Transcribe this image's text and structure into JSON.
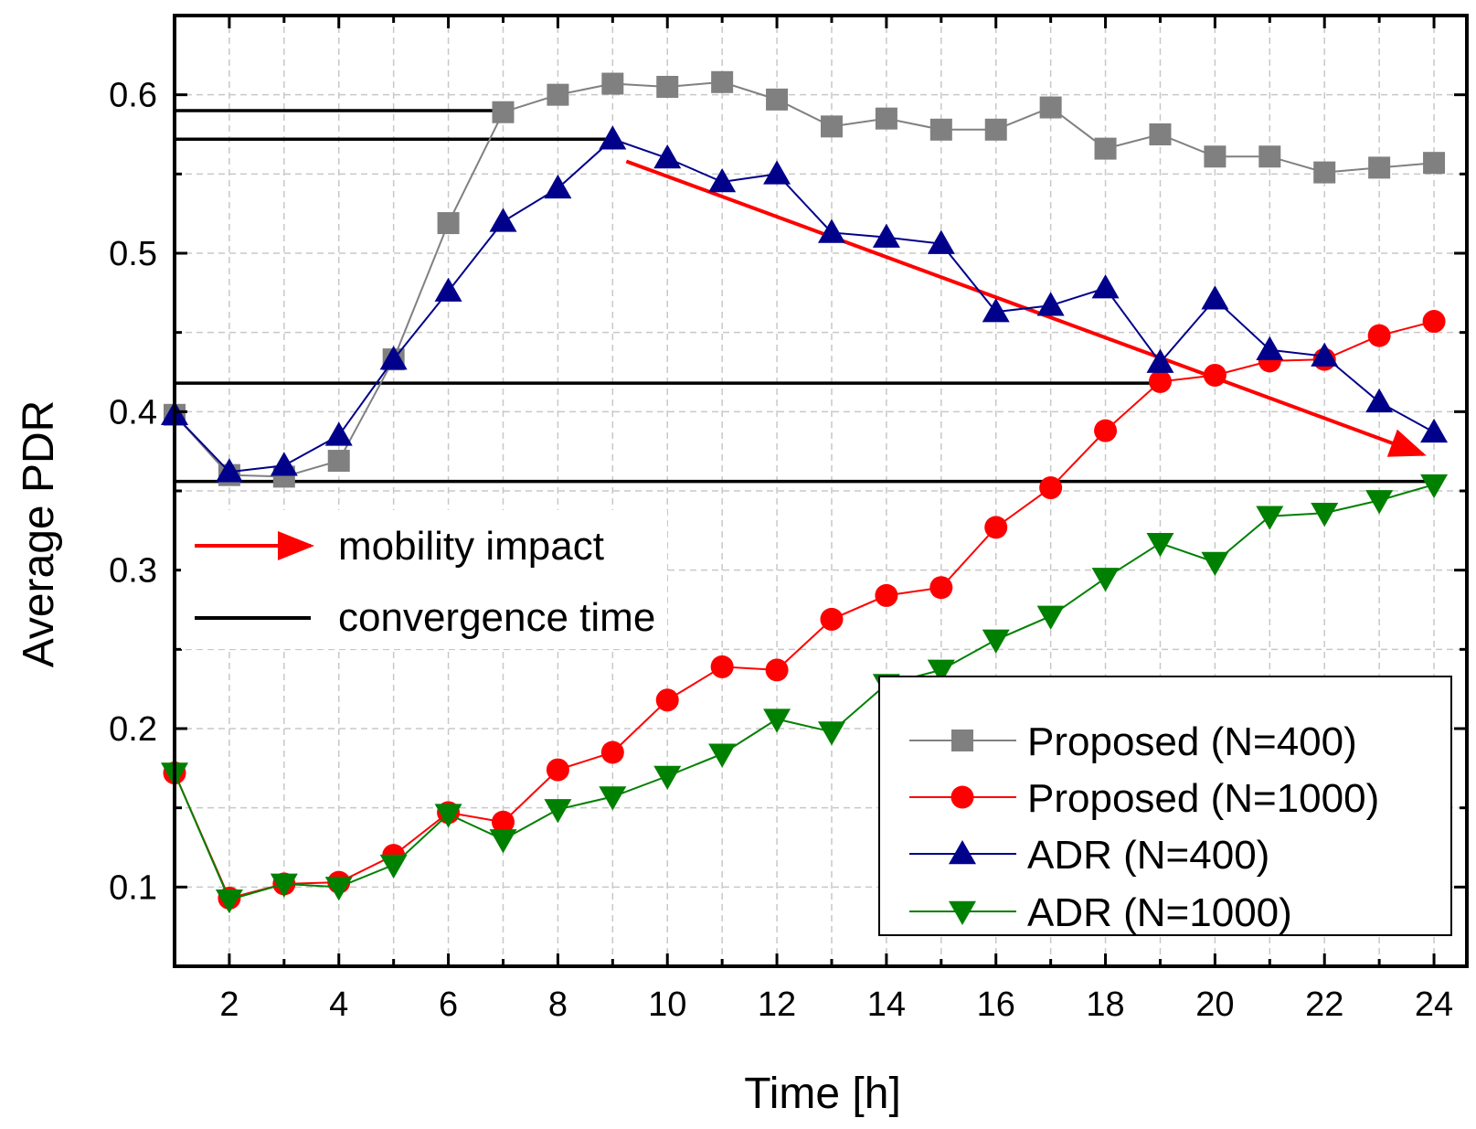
{
  "chart_data": {
    "type": "line",
    "title": "",
    "xlabel": "Time [h]",
    "ylabel": "Average PDR",
    "xlim": [
      1,
      24.6
    ],
    "ylim": [
      0.05,
      0.65
    ],
    "xticks": [
      2,
      4,
      6,
      8,
      10,
      12,
      14,
      16,
      18,
      20,
      22,
      24
    ],
    "yticks": [
      0.1,
      0.2,
      0.3,
      0.4,
      0.5,
      0.6
    ],
    "grid": true,
    "x": [
      1,
      2,
      3,
      4,
      5,
      6,
      7,
      8,
      9,
      10,
      11,
      12,
      13,
      14,
      15,
      16,
      17,
      18,
      19,
      20,
      21,
      22,
      23,
      24
    ],
    "series": [
      {
        "name": "Proposed (N=400)",
        "color": "#808080",
        "marker": "square",
        "values": [
          0.398,
          0.36,
          0.359,
          0.369,
          0.433,
          0.519,
          0.589,
          0.6,
          0.607,
          0.605,
          0.608,
          0.597,
          0.58,
          0.585,
          0.578,
          0.578,
          0.592,
          0.566,
          0.575,
          0.561,
          0.561,
          0.551,
          0.554,
          0.557
        ]
      },
      {
        "name": "Proposed (N=1000)",
        "color": "#ff0000",
        "marker": "circle",
        "values": [
          0.172,
          0.093,
          0.102,
          0.103,
          0.12,
          0.147,
          0.141,
          0.174,
          0.185,
          0.218,
          0.239,
          0.237,
          0.269,
          0.284,
          0.289,
          0.327,
          0.352,
          0.388,
          0.419,
          0.423,
          0.432,
          0.433,
          0.448,
          0.457
        ]
      },
      {
        "name": "ADR (N=400)",
        "color": "#00008b",
        "marker": "triangle-up",
        "values": [
          0.398,
          0.362,
          0.366,
          0.385,
          0.433,
          0.476,
          0.52,
          0.541,
          0.572,
          0.56,
          0.545,
          0.55,
          0.513,
          0.51,
          0.506,
          0.463,
          0.467,
          0.478,
          0.431,
          0.471,
          0.439,
          0.435,
          0.406,
          0.387
        ]
      },
      {
        "name": "ADR (N=1000)",
        "color": "#008000",
        "marker": "triangle-down",
        "values": [
          0.172,
          0.092,
          0.102,
          0.1,
          0.114,
          0.146,
          0.13,
          0.149,
          0.157,
          0.17,
          0.184,
          0.206,
          0.198,
          0.228,
          0.237,
          0.256,
          0.271,
          0.295,
          0.317,
          0.305,
          0.334,
          0.336,
          0.344,
          0.354
        ]
      }
    ],
    "annotations": {
      "convergence_lines": [
        {
          "y": 0.59,
          "x_end": 7
        },
        {
          "y": 0.572,
          "x_end": 9
        },
        {
          "y": 0.418,
          "x_end": 19
        },
        {
          "y": 0.356,
          "x_end": 24
        }
      ],
      "mobility_arrow": {
        "from": [
          9.25,
          0.558
        ],
        "to": [
          23.8,
          0.373
        ]
      }
    },
    "legend_position": "bottom-right",
    "legend_entries": [
      "Proposed (N=400)",
      "Proposed (N=1000)",
      "ADR (N=400)",
      "ADR (N=1000)"
    ],
    "annotation_legend": {
      "arrow_label": "mobility impact",
      "line_label": "convergence time",
      "arrow_color": "#ff0000",
      "line_color": "#000000"
    }
  }
}
